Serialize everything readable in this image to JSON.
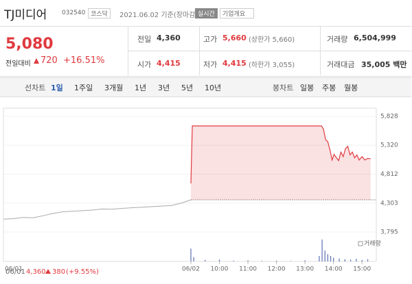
{
  "header": {
    "name": "TJ미디어",
    "code": "032540",
    "market": "코스닥",
    "date": "2021.06.02 기준(장마감)",
    "realtime": "실시간",
    "company": "기업개요"
  },
  "price": {
    "current": "5,080",
    "change_label": "전일대비",
    "change": "720",
    "change_pct": "+16.51%"
  },
  "stats": [
    {
      "label": "전일",
      "value": "4,360"
    },
    {
      "label": "고가",
      "value": "5,660",
      "extra": "(상한가 5,660)"
    },
    {
      "label": "거래량",
      "value": "6,504,999"
    },
    {
      "label": "시가",
      "value": "4,415"
    },
    {
      "label": "저가",
      "value": "4,415",
      "extra": "(하한가 3,055)"
    },
    {
      "label": "거래대금",
      "value": "35,005 백만"
    }
  ],
  "tabs": {
    "line_label": "선차트",
    "line_items": [
      "1일",
      "1주일",
      "3개월",
      "1년",
      "3년",
      "5년",
      "10년"
    ],
    "candle_label": "봉차트",
    "candle_items": [
      "일봉",
      "주봉",
      "월봉"
    ]
  },
  "chart_data": {
    "type": "line",
    "ylim": [
      3795,
      5828
    ],
    "yticks": [
      {
        "value": 5828,
        "label": "5,828"
      },
      {
        "value": 5320,
        "label": "5,320"
      },
      {
        "value": 4812,
        "label": "4,812"
      },
      {
        "value": 4303,
        "label": "4,303"
      },
      {
        "value": 3795,
        "label": "3,795"
      }
    ],
    "xlim": [
      9,
      15.5
    ],
    "xticks": [
      {
        "value": 9,
        "label": "06/02"
      },
      {
        "value": 10,
        "label": "10:00"
      },
      {
        "value": 11,
        "label": "11:00"
      },
      {
        "value": 12,
        "label": "12:00"
      },
      {
        "value": 13,
        "label": "13:00"
      },
      {
        "value": 14,
        "label": "14:00"
      },
      {
        "value": 15,
        "label": "15:00"
      }
    ],
    "grid": true,
    "prev_day": {
      "label": "06/01",
      "close": {
        "value": 4360,
        "label": "4,360"
      },
      "change": "380",
      "change_pct": "(+9.55%)",
      "color": "#aaaaaa",
      "values": [
        4020,
        4030,
        4050,
        4045,
        4080,
        4120,
        4150,
        4160,
        4170,
        4180,
        4200,
        4195,
        4210,
        4220,
        4230,
        4240,
        4250,
        4260,
        4300,
        4360
      ]
    },
    "series": [
      {
        "color": "#e0393e",
        "x": [
          9.0,
          9.05,
          9.3,
          10.0,
          11.0,
          12.0,
          13.0,
          13.58,
          13.65,
          13.72,
          13.8,
          13.88,
          13.95,
          14.02,
          14.1,
          14.18,
          14.26,
          14.34,
          14.42,
          14.5,
          14.58,
          14.66,
          14.74,
          14.82,
          14.9,
          15.0,
          15.1,
          15.2,
          15.3
        ],
        "values": [
          4650,
          5660,
          5660,
          5660,
          5660,
          5660,
          5660,
          5660,
          5600,
          5420,
          5380,
          5230,
          5060,
          5160,
          5100,
          5050,
          5200,
          5120,
          5260,
          5300,
          5150,
          5200,
          5100,
          5150,
          5060,
          5120,
          5060,
          5090,
          5080
        ]
      }
    ],
    "volume": {
      "label": "거래량",
      "color": "#5b6fb5",
      "x": [
        9.0,
        9.1,
        9.5,
        10.0,
        10.5,
        11.0,
        11.5,
        12.0,
        12.5,
        13.0,
        13.5,
        13.6,
        13.7,
        13.8,
        13.9,
        14.0,
        14.2,
        14.4,
        14.6,
        14.8,
        15.0,
        15.2
      ],
      "values": [
        350000,
        120000,
        40000,
        50000,
        20000,
        30000,
        15000,
        20000,
        10000,
        30000,
        150000,
        600000,
        300000,
        200000,
        150000,
        100000,
        80000,
        60000,
        50000,
        70000,
        40000,
        60000
      ]
    }
  }
}
